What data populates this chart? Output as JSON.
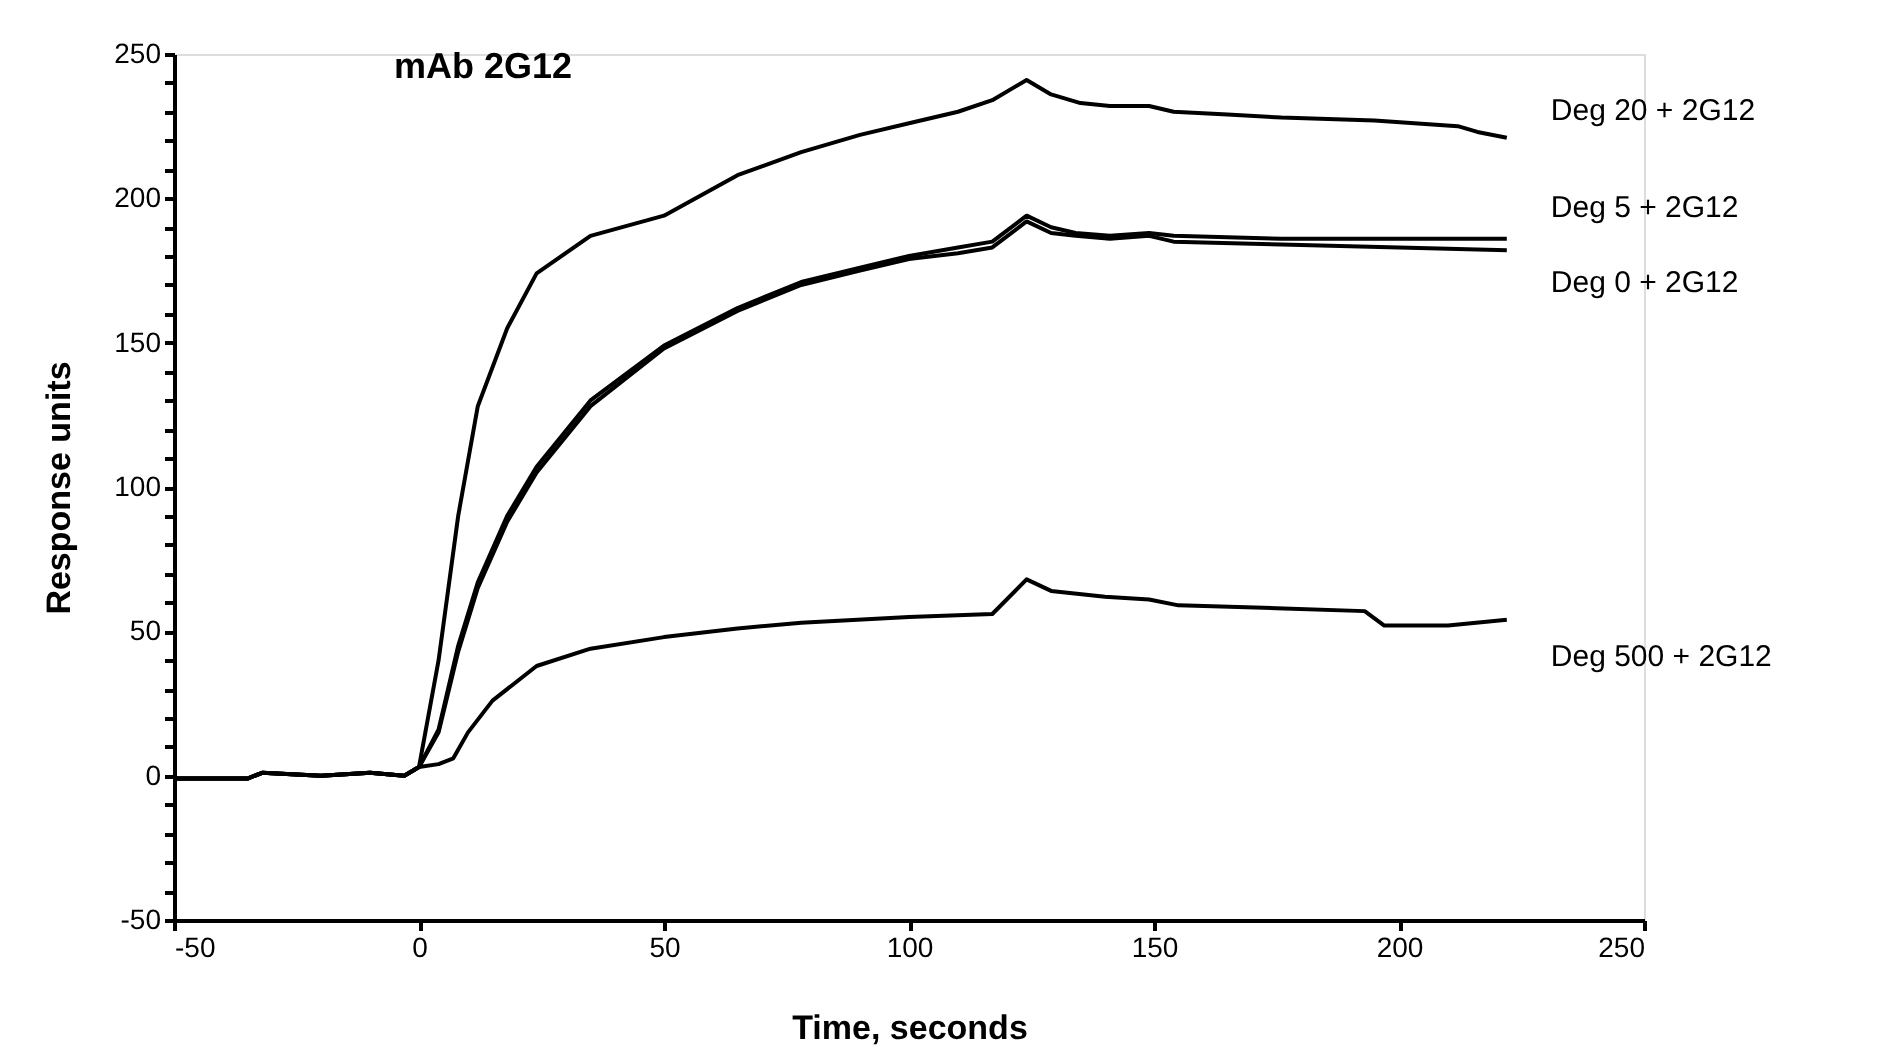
{
  "chart_data": {
    "type": "line",
    "title": "mAb 2G12",
    "xlabel": "Time, seconds",
    "ylabel": "Response units",
    "xlim": [
      -50,
      250
    ],
    "ylim": [
      -50,
      250
    ],
    "xticks": [
      -50,
      0,
      50,
      100,
      150,
      200,
      250
    ],
    "yticks": [
      -50,
      {
        "value": -40,
        "label": null
      },
      {
        "value": -30,
        "label": null
      },
      {
        "value": -20,
        "label": null
      },
      {
        "value": -10,
        "label": null
      },
      0,
      {
        "value": 10,
        "label": null
      },
      {
        "value": 20,
        "label": null
      },
      {
        "value": 30,
        "label": null
      },
      {
        "value": 40,
        "label": null
      },
      50,
      {
        "value": 60,
        "label": null
      },
      {
        "value": 70,
        "label": null
      },
      {
        "value": 80,
        "label": null
      },
      {
        "value": 90,
        "label": null
      },
      100,
      {
        "value": 110,
        "label": null
      },
      {
        "value": 120,
        "label": null
      },
      {
        "value": 130,
        "label": null
      },
      {
        "value": 140,
        "label": null
      },
      150,
      {
        "value": 160,
        "label": null
      },
      {
        "value": 170,
        "label": null
      },
      {
        "value": 180,
        "label": null
      },
      {
        "value": 190,
        "label": null
      },
      200,
      {
        "value": 210,
        "label": null
      },
      {
        "value": 220,
        "label": null
      },
      {
        "value": 230,
        "label": null
      },
      {
        "value": 240,
        "label": null
      },
      250
    ],
    "grid": false,
    "legend": false,
    "marker": "none",
    "line_style": "solid",
    "series": [
      {
        "name": "Deg 20 + 2G12",
        "color": "#000000",
        "x": [
          -50,
          -35,
          -32,
          -20,
          -10,
          -3,
          0,
          4,
          8,
          12,
          18,
          24,
          35,
          50,
          65,
          78,
          90,
          100,
          110,
          117,
          124,
          129,
          135,
          141,
          149,
          154,
          165,
          176,
          195,
          212,
          216,
          222
        ],
        "values": [
          -1,
          -1,
          1,
          0,
          1,
          0,
          3,
          40,
          90,
          128,
          155,
          174,
          187,
          194,
          208,
          216,
          222,
          226,
          230,
          234,
          241,
          236,
          233,
          232,
          232,
          230,
          229,
          228,
          227,
          225,
          223,
          221
        ]
      },
      {
        "name": "Deg 5 + 2G12",
        "color": "#000000",
        "x": [
          -50,
          -35,
          -32,
          -20,
          -10,
          -3,
          0,
          4,
          8,
          12,
          18,
          24,
          35,
          50,
          65,
          78,
          90,
          100,
          110,
          117,
          124,
          129,
          134,
          141,
          149,
          154,
          176,
          200,
          222
        ],
        "values": [
          -1,
          -1,
          1,
          0,
          1,
          0,
          3,
          16,
          45,
          67,
          90,
          107,
          130,
          149,
          162,
          171,
          176,
          180,
          183,
          185,
          194,
          190,
          188,
          187,
          188,
          187,
          186,
          186,
          186
        ]
      },
      {
        "name": "Deg 0 + 2G12",
        "color": "#000000",
        "x": [
          -50,
          -35,
          -32,
          -20,
          -10,
          -3,
          0,
          4,
          8,
          12,
          18,
          24,
          35,
          50,
          65,
          78,
          90,
          100,
          110,
          117,
          124,
          129,
          134,
          141,
          149,
          154,
          176,
          200,
          222
        ],
        "values": [
          -1,
          -1,
          1,
          0,
          1,
          0,
          3,
          15,
          43,
          65,
          88,
          105,
          128,
          148,
          161,
          170,
          175,
          179,
          181,
          183,
          192,
          188,
          187,
          186,
          187,
          185,
          184,
          183,
          182
        ]
      },
      {
        "name": "Deg 500 + 2G12",
        "color": "#000000",
        "x": [
          -50,
          -35,
          -32,
          -20,
          -10,
          -3,
          0,
          4,
          7,
          10,
          15,
          24,
          35,
          50,
          65,
          78,
          100,
          117,
          124,
          129,
          140,
          149,
          155,
          175,
          193,
          197,
          210,
          222
        ],
        "values": [
          -1,
          -1,
          1,
          0,
          1,
          0,
          3,
          4,
          6,
          15,
          26,
          38,
          44,
          48,
          51,
          53,
          55,
          56,
          68,
          64,
          62,
          61,
          59,
          58,
          57,
          52,
          52,
          54
        ]
      }
    ]
  }
}
